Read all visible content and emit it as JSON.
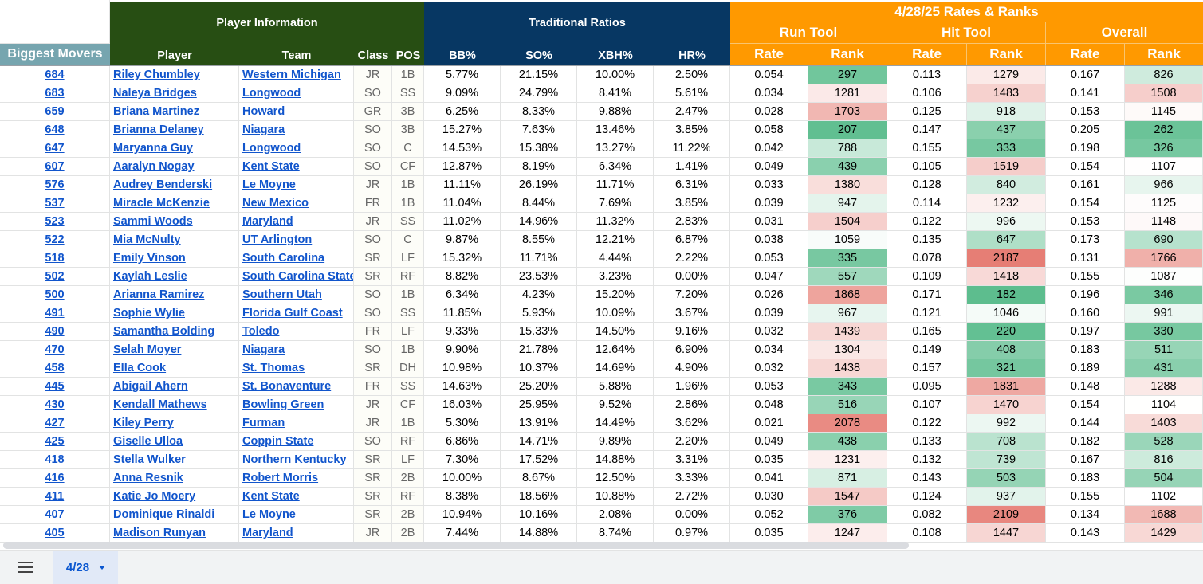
{
  "headers": {
    "player_information": "Player Information",
    "traditional_ratios": "Traditional Ratios",
    "rates_ranks": "4/28/25 Rates & Ranks",
    "run_tool": "Run Tool",
    "hit_tool": "Hit Tool",
    "overall": "Overall",
    "biggest_movers": "Biggest Movers",
    "player": "Player",
    "team": "Team",
    "class": "Class",
    "pos": "POS",
    "bb": "BB%",
    "so": "SO%",
    "xbh": "XBH%",
    "hr": "HR%",
    "rate": "Rate",
    "rank": "Rank"
  },
  "colors": {
    "green_header": "#274e13",
    "blue_header": "#073763",
    "orange_header": "#ff9900",
    "teal_header": "#76a5af",
    "rank_good": "#57bb8a",
    "rank_mid": "#ffffff",
    "rank_bad": "#e67c73"
  },
  "rows": [
    {
      "mover": "684",
      "player": "Riley Chumbley",
      "team": "Western Michigan",
      "class": "JR",
      "pos": "1B",
      "bb": "5.77%",
      "so": "21.15%",
      "xbh": "10.00%",
      "hr": "2.50%",
      "run_rate": "0.054",
      "run_rank": "297",
      "hit_rate": "0.113",
      "hit_rank": "1279",
      "ovr_rate": "0.167",
      "ovr_rank": "826"
    },
    {
      "mover": "683",
      "player": "Naleya Bridges",
      "team": "Longwood",
      "class": "SO",
      "pos": "SS",
      "bb": "9.09%",
      "so": "24.79%",
      "xbh": "8.41%",
      "hr": "5.61%",
      "run_rate": "0.034",
      "run_rank": "1281",
      "hit_rate": "0.106",
      "hit_rank": "1483",
      "ovr_rate": "0.141",
      "ovr_rank": "1508"
    },
    {
      "mover": "659",
      "player": "Briana Martinez",
      "team": "Howard",
      "class": "GR",
      "pos": "3B",
      "bb": "6.25%",
      "so": "8.33%",
      "xbh": "9.88%",
      "hr": "2.47%",
      "run_rate": "0.028",
      "run_rank": "1703",
      "hit_rate": "0.125",
      "hit_rank": "918",
      "ovr_rate": "0.153",
      "ovr_rank": "1145"
    },
    {
      "mover": "648",
      "player": "Brianna Delaney",
      "team": "Niagara",
      "class": "SO",
      "pos": "3B",
      "bb": "15.27%",
      "so": "7.63%",
      "xbh": "13.46%",
      "hr": "3.85%",
      "run_rate": "0.058",
      "run_rank": "207",
      "hit_rate": "0.147",
      "hit_rank": "437",
      "ovr_rate": "0.205",
      "ovr_rank": "262"
    },
    {
      "mover": "647",
      "player": "Maryanna Guy",
      "team": "Longwood",
      "class": "SO",
      "pos": "C",
      "bb": "14.53%",
      "so": "15.38%",
      "xbh": "13.27%",
      "hr": "11.22%",
      "run_rate": "0.042",
      "run_rank": "788",
      "hit_rate": "0.155",
      "hit_rank": "333",
      "ovr_rate": "0.198",
      "ovr_rank": "326"
    },
    {
      "mover": "607",
      "player": "Aaralyn Nogay",
      "team": "Kent State",
      "class": "SO",
      "pos": "CF",
      "bb": "12.87%",
      "so": "8.19%",
      "xbh": "6.34%",
      "hr": "1.41%",
      "run_rate": "0.049",
      "run_rank": "439",
      "hit_rate": "0.105",
      "hit_rank": "1519",
      "ovr_rate": "0.154",
      "ovr_rank": "1107"
    },
    {
      "mover": "576",
      "player": "Audrey Benderski",
      "team": "Le Moyne",
      "class": "JR",
      "pos": "1B",
      "bb": "11.11%",
      "so": "26.19%",
      "xbh": "11.71%",
      "hr": "6.31%",
      "run_rate": "0.033",
      "run_rank": "1380",
      "hit_rate": "0.128",
      "hit_rank": "840",
      "ovr_rate": "0.161",
      "ovr_rank": "966"
    },
    {
      "mover": "537",
      "player": "Miracle McKenzie",
      "team": "New Mexico",
      "class": "FR",
      "pos": "1B",
      "bb": "11.04%",
      "so": "8.44%",
      "xbh": "7.69%",
      "hr": "3.85%",
      "run_rate": "0.039",
      "run_rank": "947",
      "hit_rate": "0.114",
      "hit_rank": "1232",
      "ovr_rate": "0.154",
      "ovr_rank": "1125"
    },
    {
      "mover": "523",
      "player": "Sammi Woods",
      "team": "Maryland",
      "class": "JR",
      "pos": "SS",
      "bb": "11.02%",
      "so": "14.96%",
      "xbh": "11.32%",
      "hr": "2.83%",
      "run_rate": "0.031",
      "run_rank": "1504",
      "hit_rate": "0.122",
      "hit_rank": "996",
      "ovr_rate": "0.153",
      "ovr_rank": "1148"
    },
    {
      "mover": "522",
      "player": "Mia McNulty",
      "team": "UT Arlington",
      "class": "SO",
      "pos": "C",
      "bb": "9.87%",
      "so": "8.55%",
      "xbh": "12.21%",
      "hr": "6.87%",
      "run_rate": "0.038",
      "run_rank": "1059",
      "hit_rate": "0.135",
      "hit_rank": "647",
      "ovr_rate": "0.173",
      "ovr_rank": "690"
    },
    {
      "mover": "518",
      "player": "Emily Vinson",
      "team": "South Carolina",
      "class": "SR",
      "pos": "LF",
      "bb": "15.32%",
      "so": "11.71%",
      "xbh": "4.44%",
      "hr": "2.22%",
      "run_rate": "0.053",
      "run_rank": "335",
      "hit_rate": "0.078",
      "hit_rank": "2187",
      "ovr_rate": "0.131",
      "ovr_rank": "1766"
    },
    {
      "mover": "502",
      "player": "Kaylah Leslie",
      "team": "South Carolina State",
      "class": "SR",
      "pos": "RF",
      "bb": "8.82%",
      "so": "23.53%",
      "xbh": "3.23%",
      "hr": "0.00%",
      "run_rate": "0.047",
      "run_rank": "557",
      "hit_rate": "0.109",
      "hit_rank": "1418",
      "ovr_rate": "0.155",
      "ovr_rank": "1087"
    },
    {
      "mover": "500",
      "player": "Arianna Ramirez",
      "team": "Southern Utah",
      "class": "SO",
      "pos": "1B",
      "bb": "6.34%",
      "so": "4.23%",
      "xbh": "15.20%",
      "hr": "7.20%",
      "run_rate": "0.026",
      "run_rank": "1868",
      "hit_rate": "0.171",
      "hit_rank": "182",
      "ovr_rate": "0.196",
      "ovr_rank": "346"
    },
    {
      "mover": "491",
      "player": "Sophie Wylie",
      "team": "Florida Gulf Coast",
      "class": "SO",
      "pos": "SS",
      "bb": "11.85%",
      "so": "5.93%",
      "xbh": "10.09%",
      "hr": "3.67%",
      "run_rate": "0.039",
      "run_rank": "967",
      "hit_rate": "0.121",
      "hit_rank": "1046",
      "ovr_rate": "0.160",
      "ovr_rank": "991"
    },
    {
      "mover": "490",
      "player": "Samantha Bolding",
      "team": "Toledo",
      "class": "FR",
      "pos": "LF",
      "bb": "9.33%",
      "so": "15.33%",
      "xbh": "14.50%",
      "hr": "9.16%",
      "run_rate": "0.032",
      "run_rank": "1439",
      "hit_rate": "0.165",
      "hit_rank": "220",
      "ovr_rate": "0.197",
      "ovr_rank": "330"
    },
    {
      "mover": "470",
      "player": "Selah Moyer",
      "team": "Niagara",
      "class": "SO",
      "pos": "1B",
      "bb": "9.90%",
      "so": "21.78%",
      "xbh": "12.64%",
      "hr": "6.90%",
      "run_rate": "0.034",
      "run_rank": "1304",
      "hit_rate": "0.149",
      "hit_rank": "408",
      "ovr_rate": "0.183",
      "ovr_rank": "511"
    },
    {
      "mover": "458",
      "player": "Ella Cook",
      "team": "St. Thomas",
      "class": "SR",
      "pos": "DH",
      "bb": "10.98%",
      "so": "10.37%",
      "xbh": "14.69%",
      "hr": "4.90%",
      "run_rate": "0.032",
      "run_rank": "1438",
      "hit_rate": "0.157",
      "hit_rank": "321",
      "ovr_rate": "0.189",
      "ovr_rank": "431"
    },
    {
      "mover": "445",
      "player": "Abigail Ahern",
      "team": "St. Bonaventure",
      "class": "FR",
      "pos": "SS",
      "bb": "14.63%",
      "so": "25.20%",
      "xbh": "5.88%",
      "hr": "1.96%",
      "run_rate": "0.053",
      "run_rank": "343",
      "hit_rate": "0.095",
      "hit_rank": "1831",
      "ovr_rate": "0.148",
      "ovr_rank": "1288"
    },
    {
      "mover": "430",
      "player": "Kendall Mathews",
      "team": "Bowling Green",
      "class": "JR",
      "pos": "CF",
      "bb": "16.03%",
      "so": "25.95%",
      "xbh": "9.52%",
      "hr": "2.86%",
      "run_rate": "0.048",
      "run_rank": "516",
      "hit_rate": "0.107",
      "hit_rank": "1470",
      "ovr_rate": "0.154",
      "ovr_rank": "1104"
    },
    {
      "mover": "427",
      "player": "Kiley Perry",
      "team": "Furman",
      "class": "JR",
      "pos": "1B",
      "bb": "5.30%",
      "so": "13.91%",
      "xbh": "14.49%",
      "hr": "3.62%",
      "run_rate": "0.021",
      "run_rank": "2078",
      "hit_rate": "0.122",
      "hit_rank": "992",
      "ovr_rate": "0.144",
      "ovr_rank": "1403"
    },
    {
      "mover": "425",
      "player": "Giselle Ulloa",
      "team": "Coppin State",
      "class": "SO",
      "pos": "RF",
      "bb": "6.86%",
      "so": "14.71%",
      "xbh": "9.89%",
      "hr": "2.20%",
      "run_rate": "0.049",
      "run_rank": "438",
      "hit_rate": "0.133",
      "hit_rank": "708",
      "ovr_rate": "0.182",
      "ovr_rank": "528"
    },
    {
      "mover": "418",
      "player": "Stella Wulker",
      "team": "Northern Kentucky",
      "class": "SR",
      "pos": "LF",
      "bb": "7.30%",
      "so": "17.52%",
      "xbh": "14.88%",
      "hr": "3.31%",
      "run_rate": "0.035",
      "run_rank": "1231",
      "hit_rate": "0.132",
      "hit_rank": "739",
      "ovr_rate": "0.167",
      "ovr_rank": "816"
    },
    {
      "mover": "416",
      "player": "Anna Resnik",
      "team": "Robert Morris",
      "class": "SR",
      "pos": "2B",
      "bb": "10.00%",
      "so": "8.67%",
      "xbh": "12.50%",
      "hr": "3.33%",
      "run_rate": "0.041",
      "run_rank": "871",
      "hit_rate": "0.143",
      "hit_rank": "503",
      "ovr_rate": "0.183",
      "ovr_rank": "504"
    },
    {
      "mover": "411",
      "player": "Katie Jo Moery",
      "team": "Kent State",
      "class": "SR",
      "pos": "RF",
      "bb": "8.38%",
      "so": "18.56%",
      "xbh": "10.88%",
      "hr": "2.72%",
      "run_rate": "0.030",
      "run_rank": "1547",
      "hit_rate": "0.124",
      "hit_rank": "937",
      "ovr_rate": "0.155",
      "ovr_rank": "1102"
    },
    {
      "mover": "407",
      "player": "Dominique Rinaldi",
      "team": "Le Moyne",
      "class": "SR",
      "pos": "2B",
      "bb": "10.94%",
      "so": "10.16%",
      "xbh": "2.08%",
      "hr": "0.00%",
      "run_rate": "0.052",
      "run_rank": "376",
      "hit_rate": "0.082",
      "hit_rank": "2109",
      "ovr_rate": "0.134",
      "ovr_rank": "1688"
    },
    {
      "mover": "405",
      "player": "Madison Runyan",
      "team": "Maryland",
      "class": "JR",
      "pos": "2B",
      "bb": "7.44%",
      "so": "14.88%",
      "xbh": "8.74%",
      "hr": "0.97%",
      "run_rate": "0.035",
      "run_rank": "1247",
      "hit_rate": "0.108",
      "hit_rank": "1447",
      "ovr_rate": "0.143",
      "ovr_rank": "1429"
    }
  ],
  "sheet_tab": {
    "label": "4/28"
  },
  "icons": {
    "menu": "hamburger-menu-icon",
    "tab_dropdown": "caret-down-icon"
  }
}
